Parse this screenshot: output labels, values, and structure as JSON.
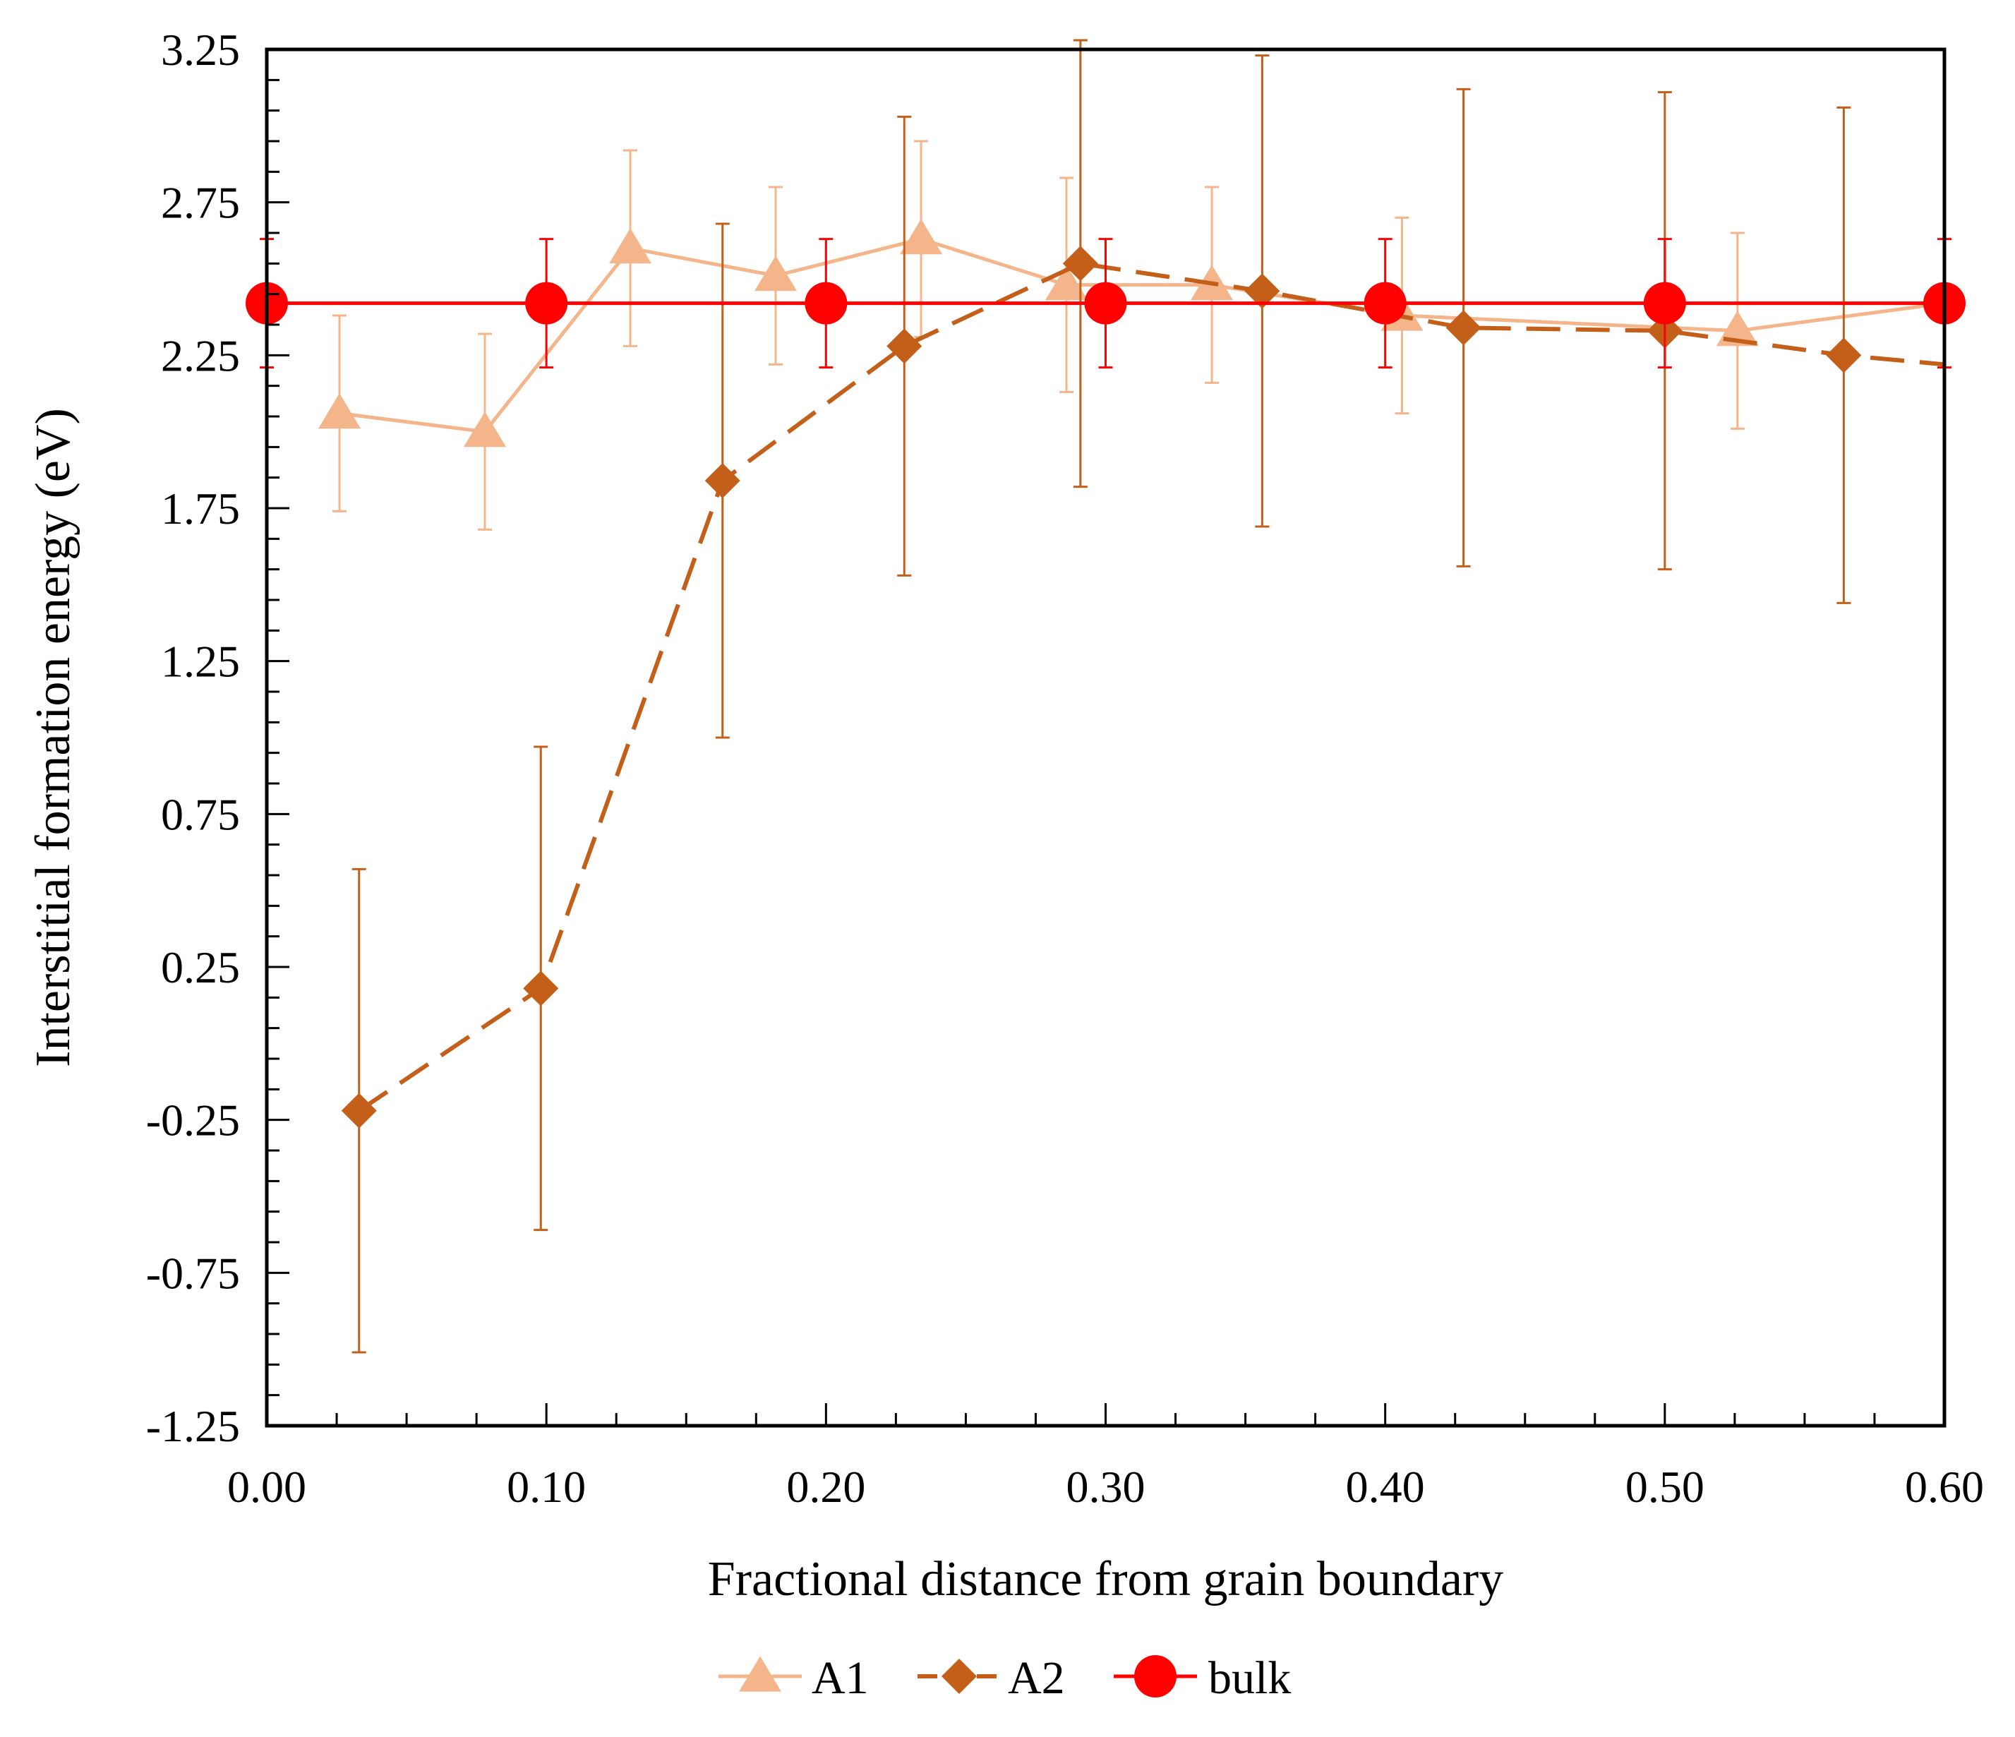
{
  "chart_data": {
    "type": "line",
    "xlabel": "Fractional distance from grain boundary",
    "ylabel": "Interstitial formation energy (eV)",
    "xlim": [
      0.0,
      0.6
    ],
    "ylim": [
      -1.25,
      3.25
    ],
    "x_ticks": [
      "0.00",
      "0.10",
      "0.20",
      "0.30",
      "0.40",
      "0.50",
      "0.60"
    ],
    "y_ticks": [
      "-1.25",
      "-0.75",
      "-0.25",
      "0.25",
      "0.75",
      "1.25",
      "1.75",
      "2.25",
      "2.75",
      "3.25"
    ],
    "grid": false,
    "legend_position": "bottom-center",
    "series": [
      {
        "name": "A1",
        "color": "#F5B58A",
        "marker": "triangle",
        "line": "solid",
        "x": [
          0.026,
          0.078,
          0.13,
          0.182,
          0.234,
          0.286,
          0.338,
          0.406,
          0.526,
          0.6
        ],
        "y": [
          2.06,
          2.0,
          2.6,
          2.51,
          2.63,
          2.48,
          2.48,
          2.38,
          2.33,
          2.42
        ],
        "err": [
          0.32,
          0.32,
          0.32,
          0.29,
          0.32,
          0.35,
          0.32,
          0.32,
          0.32,
          0.0
        ]
      },
      {
        "name": "A2",
        "color": "#C45F1A",
        "marker": "diamond",
        "line": "dashed",
        "x": [
          0.033,
          0.098,
          0.163,
          0.228,
          0.291,
          0.356,
          0.428,
          0.5,
          0.564,
          0.6
        ],
        "y": [
          -0.22,
          0.18,
          1.84,
          2.28,
          2.55,
          2.46,
          2.34,
          2.33,
          2.25,
          2.22
        ],
        "err": [
          0.79,
          0.79,
          0.84,
          0.75,
          0.73,
          0.77,
          0.78,
          0.78,
          0.81,
          0.0
        ]
      },
      {
        "name": "bulk",
        "color": "#FF0000",
        "marker": "circle",
        "line": "solid",
        "x": [
          0.0,
          0.1,
          0.2,
          0.3,
          0.4,
          0.5,
          0.6
        ],
        "y": [
          2.42,
          2.42,
          2.42,
          2.42,
          2.42,
          2.42,
          2.42
        ],
        "err": [
          0.21,
          0.21,
          0.21,
          0.21,
          0.21,
          0.21,
          0.21
        ]
      }
    ]
  }
}
